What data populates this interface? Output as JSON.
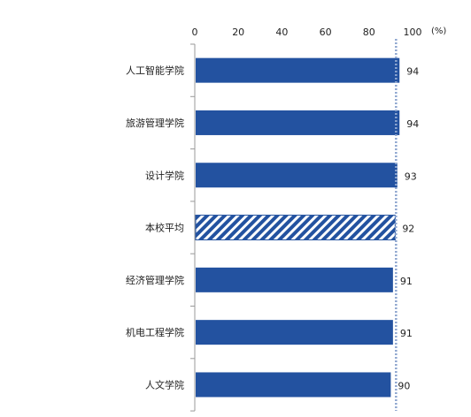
{
  "chart_data": {
    "type": "bar",
    "orientation": "horizontal",
    "categories": [
      "人工智能学院",
      "旅游管理学院",
      "设计学院",
      "本校平均",
      "经济管理学院",
      "机电工程学院",
      "人文学院"
    ],
    "values": [
      94,
      94,
      93,
      92,
      91,
      91,
      90
    ],
    "x_ticks": [
      0,
      20,
      40,
      60,
      80,
      100
    ],
    "xlim": [
      0,
      100
    ],
    "unit": "(%)",
    "reference_value": 92,
    "grid": false,
    "colors": {
      "bar": "#2352a0",
      "hatched_bar": "#2352a0",
      "reference_line": "#8ea6cf",
      "axis": "#999999"
    },
    "hatched_category": "本校平均"
  }
}
